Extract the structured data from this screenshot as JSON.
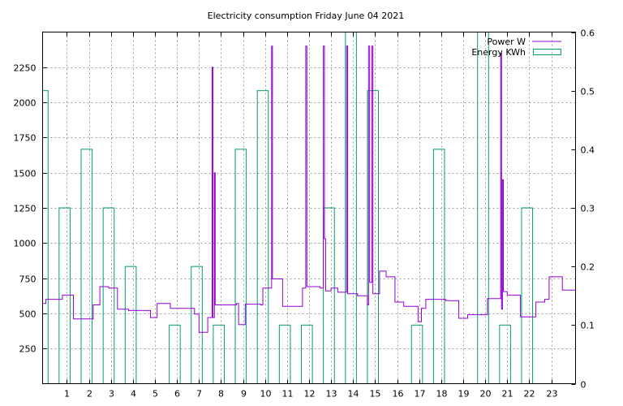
{
  "chart_data": {
    "type": "line",
    "title": "Electricity consumption Friday June 04 2021",
    "xlabel": "",
    "ylabel": "",
    "y2label": "",
    "grid": true,
    "legend_position": "top-right",
    "xlim": [
      -0.1,
      24.1
    ],
    "ylim": [
      0,
      2500
    ],
    "y2lim": [
      0,
      0.6
    ],
    "x_ticks": [
      1,
      2,
      3,
      4,
      5,
      6,
      7,
      8,
      9,
      10,
      11,
      12,
      13,
      14,
      15,
      16,
      17,
      18,
      19,
      20,
      21,
      22,
      23
    ],
    "y_ticks": [
      250,
      500,
      750,
      1000,
      1250,
      1500,
      1750,
      2000,
      2250
    ],
    "y2_ticks": [
      0,
      0.1,
      0.2,
      0.3,
      0.4,
      0.5,
      0.6
    ],
    "series": [
      {
        "name": "Power W",
        "axis": "y",
        "style": "steps",
        "color": "#9400d3",
        "points": [
          [
            -0.1,
            570
          ],
          [
            0.05,
            600
          ],
          [
            0.8,
            630
          ],
          [
            1.3,
            460
          ],
          [
            2.2,
            560
          ],
          [
            2.5,
            690
          ],
          [
            2.9,
            680
          ],
          [
            3.3,
            530
          ],
          [
            3.8,
            520
          ],
          [
            4.8,
            470
          ],
          [
            5.1,
            570
          ],
          [
            5.7,
            535
          ],
          [
            6.8,
            495
          ],
          [
            7.0,
            365
          ],
          [
            7.4,
            470
          ],
          [
            7.6,
            2250
          ],
          [
            7.64,
            470
          ],
          [
            7.7,
            1500
          ],
          [
            7.74,
            560
          ],
          [
            8.7,
            570
          ],
          [
            8.8,
            420
          ],
          [
            9.1,
            565
          ],
          [
            9.8,
            560
          ],
          [
            9.9,
            680
          ],
          [
            10.3,
            2400
          ],
          [
            10.34,
            745
          ],
          [
            10.8,
            550
          ],
          [
            11.7,
            680
          ],
          [
            11.85,
            2400
          ],
          [
            11.9,
            690
          ],
          [
            12.5,
            680
          ],
          [
            12.65,
            2400
          ],
          [
            12.7,
            1030
          ],
          [
            12.75,
            660
          ],
          [
            13.0,
            680
          ],
          [
            13.3,
            650
          ],
          [
            13.7,
            2400
          ],
          [
            13.75,
            640
          ],
          [
            14.2,
            625
          ],
          [
            14.65,
            560
          ],
          [
            14.7,
            2400
          ],
          [
            14.75,
            720
          ],
          [
            14.85,
            2400
          ],
          [
            14.9,
            640
          ],
          [
            15.2,
            800
          ],
          [
            15.5,
            760
          ],
          [
            15.9,
            580
          ],
          [
            16.3,
            550
          ],
          [
            16.95,
            440
          ],
          [
            17.1,
            535
          ],
          [
            17.3,
            600
          ],
          [
            18.2,
            590
          ],
          [
            18.8,
            465
          ],
          [
            19.2,
            490
          ],
          [
            20.1,
            605
          ],
          [
            20.7,
            2350
          ],
          [
            20.74,
            530
          ],
          [
            20.78,
            1450
          ],
          [
            20.82,
            655
          ],
          [
            21.0,
            630
          ],
          [
            21.6,
            475
          ],
          [
            22.3,
            580
          ],
          [
            22.7,
            600
          ],
          [
            22.9,
            760
          ],
          [
            23.5,
            665
          ],
          [
            24.1,
            665
          ]
        ]
      },
      {
        "name": "Energy KWh",
        "axis": "y2",
        "style": "boxes",
        "color": "#009e73",
        "boxes": [
          [
            -0.15,
            0.15,
            0.5
          ],
          [
            0.65,
            1.15,
            0.3
          ],
          [
            1.65,
            2.15,
            0.4
          ],
          [
            2.65,
            3.15,
            0.3
          ],
          [
            3.65,
            4.15,
            0.2
          ],
          [
            5.65,
            6.15,
            0.1
          ],
          [
            6.65,
            7.15,
            0.2
          ],
          [
            7.65,
            8.15,
            0.1
          ],
          [
            8.65,
            9.15,
            0.4
          ],
          [
            9.65,
            10.15,
            0.5
          ],
          [
            10.65,
            11.15,
            0.1
          ],
          [
            11.65,
            12.15,
            0.1
          ],
          [
            12.65,
            13.15,
            0.3
          ],
          [
            13.65,
            14.15,
            0.6
          ],
          [
            14.65,
            15.15,
            0.5
          ],
          [
            16.65,
            17.15,
            0.1
          ],
          [
            17.65,
            18.15,
            0.4
          ],
          [
            19.65,
            20.15,
            0.6
          ],
          [
            20.65,
            21.15,
            0.1
          ],
          [
            21.65,
            22.15,
            0.3
          ]
        ]
      }
    ]
  }
}
